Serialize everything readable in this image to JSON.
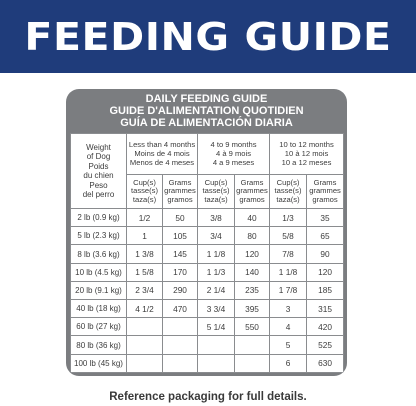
{
  "banner": {
    "title": "FEEDING GUIDE"
  },
  "card": {
    "title_lines": [
      "DAILY FEEDING GUIDE",
      "GUIDE D'ALIMENTATION QUOTIDIEN",
      "GUÍA DE ALIMENTACIÓN DIARIA"
    ],
    "row_header_lines": [
      "Weight",
      "of Dog",
      "Poids",
      "du chien",
      "Peso",
      "del perro"
    ],
    "age_groups": [
      {
        "lines": [
          "Less than 4 months",
          "Moins de 4 mois",
          "Menos de 4 meses"
        ]
      },
      {
        "lines": [
          "4 to 9 months",
          "4 à 9 mois",
          "4 a 9 meses"
        ]
      },
      {
        "lines": [
          "10 to 12 months",
          "10 à 12 mois",
          "10 a 12 meses"
        ]
      }
    ],
    "cup_header_lines": [
      "Cup(s)",
      "tasse(s)",
      "taza(s)"
    ],
    "gram_header_lines": [
      "Grams",
      "grammes",
      "gramos"
    ],
    "rows": [
      {
        "weight": "2 lb (0.9 kg)",
        "values": [
          "1/2",
          "50",
          "3/8",
          "40",
          "1/3",
          "35"
        ]
      },
      {
        "weight": "5 lb (2.3 kg)",
        "values": [
          "1",
          "105",
          "3/4",
          "80",
          "5/8",
          "65"
        ]
      },
      {
        "weight": "8 lb (3.6 kg)",
        "values": [
          "1 3/8",
          "145",
          "1 1/8",
          "120",
          "7/8",
          "90"
        ]
      },
      {
        "weight": "10 lb (4.5 kg)",
        "values": [
          "1 5/8",
          "170",
          "1 1/3",
          "140",
          "1 1/8",
          "120"
        ]
      },
      {
        "weight": "20 lb (9.1 kg)",
        "values": [
          "2 3/4",
          "290",
          "2 1/4",
          "235",
          "1 7/8",
          "185"
        ]
      },
      {
        "weight": "40 lb (18 kg)",
        "values": [
          "4 1/2",
          "470",
          "3 3/4",
          "395",
          "3",
          "315"
        ]
      },
      {
        "weight": "60 lb (27 kg)",
        "values": [
          "",
          "",
          "5 1/4",
          "550",
          "4",
          "420"
        ]
      },
      {
        "weight": "80 lb (36 kg)",
        "values": [
          "",
          "",
          "",
          "",
          "5",
          "525"
        ]
      },
      {
        "weight": "100 lb (45 kg)",
        "values": [
          "",
          "",
          "",
          "",
          "6",
          "630"
        ]
      }
    ]
  },
  "footer": {
    "text": "Reference packaging for full details."
  }
}
